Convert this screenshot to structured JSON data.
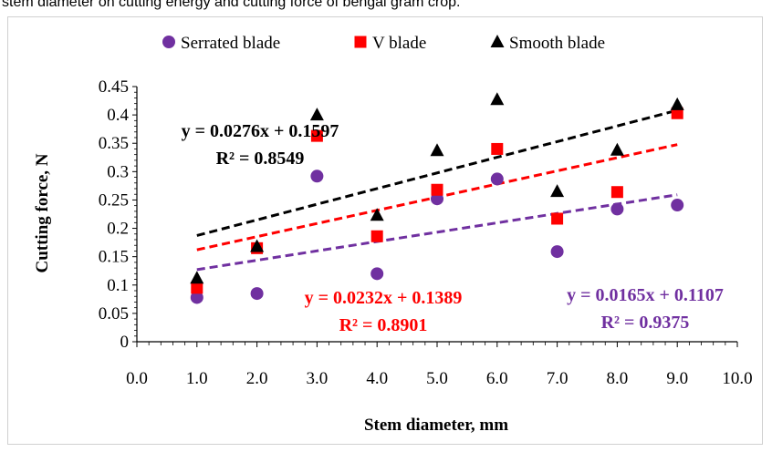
{
  "caption": "stem diameter on cutting energy and cutting force of bengal gram crop.",
  "chart_data": {
    "type": "scatter",
    "xlabel": "Stem diameter, mm",
    "ylabel": "Cutting force, N",
    "xlim": [
      0,
      10
    ],
    "ylim": [
      0,
      0.45
    ],
    "xticks": [
      "0.0",
      "1.0",
      "2.0",
      "3.0",
      "4.0",
      "5.0",
      "6.0",
      "7.0",
      "8.0",
      "9.0",
      "10.0"
    ],
    "yticks": [
      "0",
      "0.05",
      "0.1",
      "0.15",
      "0.2",
      "0.25",
      "0.3",
      "0.35",
      "0.4",
      "0.45"
    ],
    "grid": false,
    "legend_position": "top",
    "series": [
      {
        "name": "Serrated blade",
        "marker": "circle",
        "color": "#7030a0",
        "x": [
          1,
          2,
          3,
          4,
          5,
          6,
          7,
          8,
          9
        ],
        "y": [
          0.078,
          0.085,
          0.292,
          0.12,
          0.252,
          0.287,
          0.159,
          0.234,
          0.241
        ],
        "trendline": {
          "slope": 0.0165,
          "intercept": 0.1107,
          "equation": "y = 0.0165x + 0.1107",
          "r2": "R² = 0.9375"
        }
      },
      {
        "name": "V blade",
        "marker": "square",
        "color": "#ff0000",
        "x": [
          1,
          2,
          3,
          4,
          5,
          6,
          7,
          8,
          9
        ],
        "y": [
          0.095,
          0.165,
          0.363,
          0.186,
          0.268,
          0.34,
          0.217,
          0.264,
          0.403
        ],
        "trendline": {
          "slope": 0.0232,
          "intercept": 0.1389,
          "equation": "y = 0.0232x + 0.1389",
          "r2": "R² = 0.8901"
        }
      },
      {
        "name": "Smooth blade",
        "marker": "triangle",
        "color": "#000000",
        "x": [
          1,
          2,
          3,
          4,
          5,
          6,
          7,
          8,
          9
        ],
        "y": [
          0.112,
          0.168,
          0.4,
          0.223,
          0.337,
          0.427,
          0.265,
          0.338,
          0.418
        ],
        "trendline": {
          "slope": 0.0276,
          "intercept": 0.1597,
          "equation": "y = 0.0276x + 0.1597",
          "r2": "R² = 0.8549"
        }
      }
    ]
  }
}
